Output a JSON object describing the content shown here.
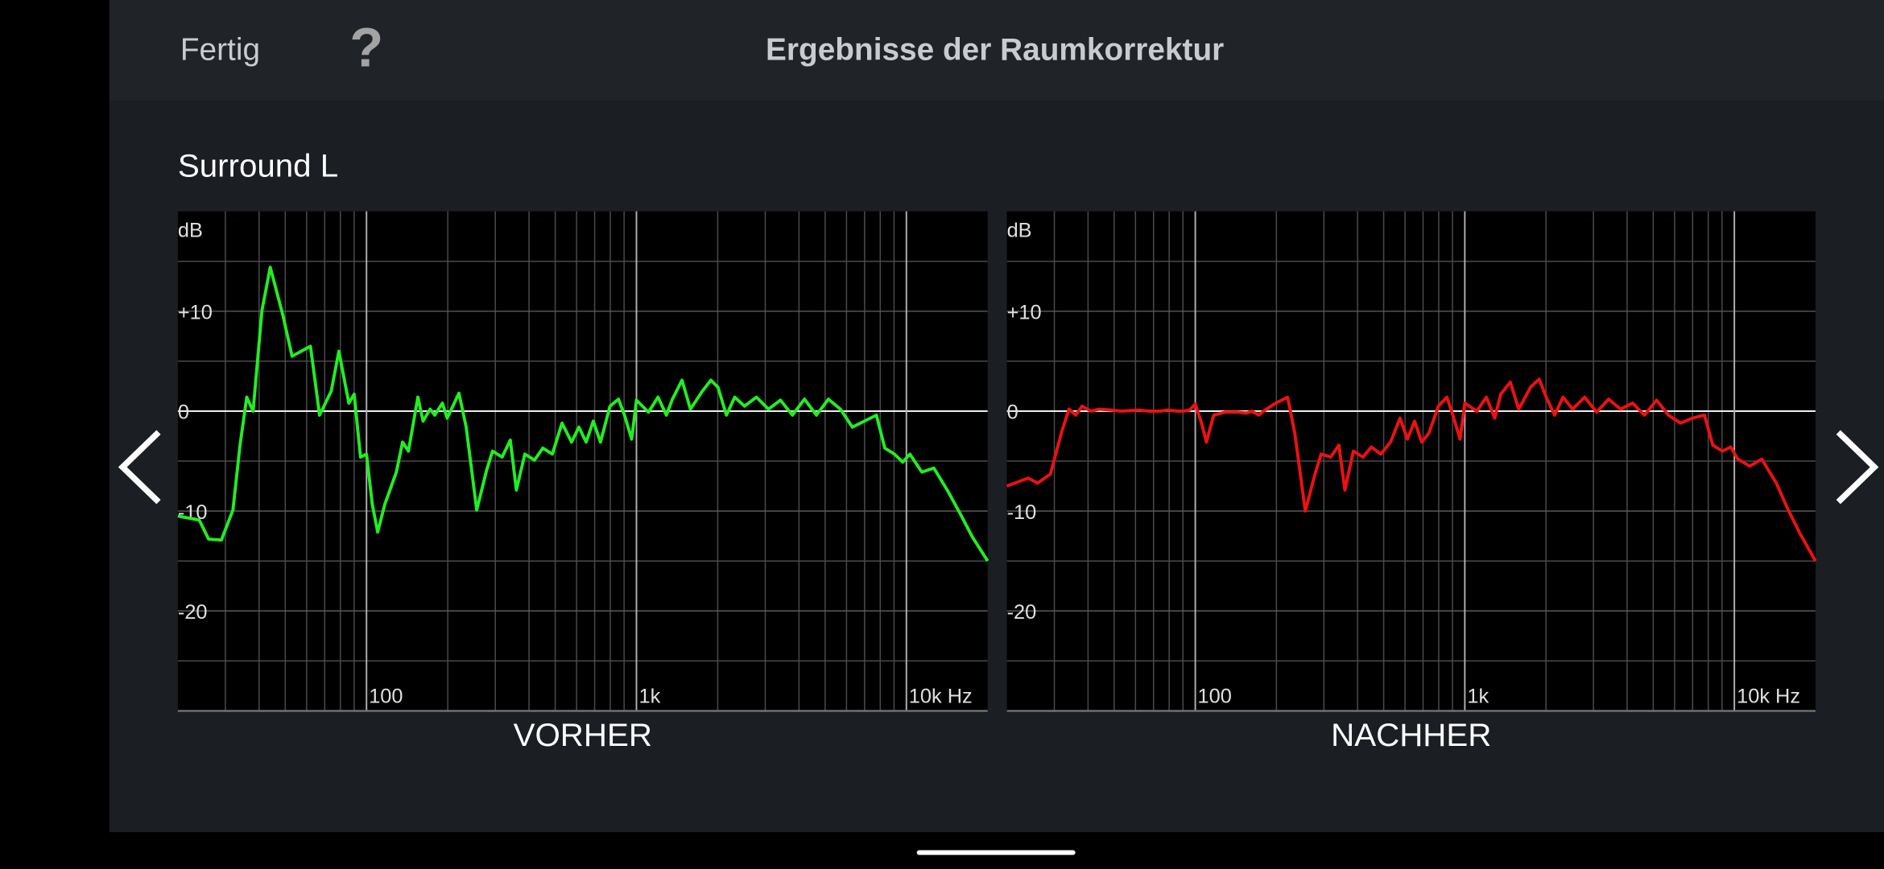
{
  "header": {
    "done": "Fertig",
    "help": "?",
    "title": "Ergebnisse der Raumkorrektur"
  },
  "speaker": "Surround L",
  "chart_data": [
    {
      "type": "line",
      "x_label": "VORHER",
      "y_label": "dB",
      "color": "#22ee22",
      "log_x": true,
      "grid": true,
      "xlim": [
        20,
        20000
      ],
      "ylim": [
        -30,
        20
      ],
      "xticks": [
        100,
        {
          "value": 1000,
          "label": "1k"
        },
        {
          "value": 10000,
          "label": "10k Hz"
        }
      ],
      "x_minor_ticks": [
        30,
        40,
        50,
        60,
        70,
        80,
        90,
        200,
        300,
        400,
        500,
        600,
        700,
        800,
        900,
        2000,
        3000,
        4000,
        5000,
        6000,
        7000,
        8000,
        9000
      ],
      "yticks": [
        {
          "value": 10,
          "label": "+10"
        },
        0,
        -10,
        -20
      ],
      "y_minor_ticks": [
        15,
        5,
        -5,
        -15,
        -25
      ],
      "x": [
        20,
        24,
        26,
        29,
        32,
        34,
        36,
        38,
        41,
        44,
        49,
        53,
        62,
        67,
        74,
        79,
        86,
        90,
        95,
        100,
        105,
        110,
        117,
        129,
        136,
        143,
        155,
        162,
        172,
        179,
        191,
        199,
        220,
        234,
        256,
        278,
        293,
        318,
        341,
        359,
        386,
        419,
        450,
        488,
        530,
        575,
        612,
        651,
        692,
        736,
        798,
        858,
        903,
        960,
        1000,
        1108,
        1202,
        1291,
        1359,
        1475,
        1585,
        1754,
        1887,
        2004,
        2154,
        2313,
        2512,
        2783,
        3083,
        3415,
        3783,
        4191,
        4642,
        5142,
        5696,
        6310,
        6990,
        7743,
        8318,
        9028,
        9700,
        10300,
        11410,
        12640,
        14310,
        15850,
        17560,
        20000
      ],
      "values": [
        -10.5,
        -10.9,
        -12.8,
        -12.9,
        -9.9,
        -3.4,
        1.4,
        0,
        10.1,
        14.4,
        9.6,
        5.5,
        6.5,
        -0.4,
        2.0,
        6.0,
        0.8,
        1.7,
        -4.6,
        -4.3,
        -9.3,
        -12.1,
        -9.3,
        -6.1,
        -3.1,
        -4.0,
        1.4,
        -1.0,
        0.2,
        -0.4,
        0.8,
        -0.7,
        1.8,
        -1.6,
        -9.9,
        -6.0,
        -4.0,
        -4.6,
        -2.9,
        -7.9,
        -4.3,
        -4.9,
        -3.7,
        -4.3,
        -1.2,
        -3.1,
        -1.6,
        -3.1,
        -1.0,
        -3.1,
        0.5,
        1.2,
        -0.4,
        -2.8,
        1.1,
        -0.1,
        1.4,
        -0.4,
        1.2,
        3.1,
        0.2,
        2.0,
        3.1,
        2.4,
        -0.4,
        1.4,
        0.5,
        1.4,
        0.2,
        1.1,
        -0.4,
        1.2,
        -0.4,
        1.2,
        0.2,
        -1.6,
        -1.0,
        -0.4,
        -3.7,
        -4.3,
        -5.1,
        -4.3,
        -6.1,
        -5.7,
        -8.1,
        -10.3,
        -12.6,
        -15.0
      ]
    },
    {
      "type": "line",
      "x_label": "NACHHER",
      "y_label": "dB",
      "color": "#ee1111",
      "log_x": true,
      "grid": true,
      "xlim": [
        20,
        20000
      ],
      "ylim": [
        -30,
        20
      ],
      "xticks": [
        100,
        {
          "value": 1000,
          "label": "1k"
        },
        {
          "value": 10000,
          "label": "10k Hz"
        }
      ],
      "x_minor_ticks": [
        30,
        40,
        50,
        60,
        70,
        80,
        90,
        200,
        300,
        400,
        500,
        600,
        700,
        800,
        900,
        2000,
        3000,
        4000,
        5000,
        6000,
        7000,
        8000,
        9000
      ],
      "yticks": [
        {
          "value": 10,
          "label": "+10"
        },
        0,
        -10,
        -20
      ],
      "y_minor_ticks": [
        15,
        5,
        -5,
        -15,
        -25
      ],
      "x": [
        20,
        24,
        26,
        29,
        32,
        34,
        36,
        38,
        41,
        44,
        49,
        53,
        62,
        67,
        74,
        79,
        86,
        90,
        95,
        100,
        105,
        110,
        117,
        129,
        136,
        143,
        155,
        162,
        172,
        179,
        191,
        199,
        220,
        234,
        256,
        278,
        293,
        318,
        341,
        359,
        386,
        419,
        450,
        488,
        530,
        575,
        612,
        651,
        692,
        736,
        798,
        858,
        903,
        960,
        1000,
        1108,
        1202,
        1291,
        1359,
        1475,
        1585,
        1754,
        1887,
        2004,
        2154,
        2313,
        2512,
        2783,
        3083,
        3415,
        3783,
        4191,
        4642,
        5142,
        5696,
        6310,
        6990,
        7743,
        8318,
        9028,
        9700,
        10300,
        11410,
        12640,
        14310,
        15850,
        17560,
        20000
      ],
      "values": [
        -7.5,
        -6.7,
        -7.2,
        -6.3,
        -2.0,
        0.2,
        -0.4,
        0.5,
        0,
        0.2,
        0.1,
        0,
        0.1,
        0,
        0,
        0.1,
        0,
        0,
        0.1,
        0.7,
        -1.0,
        -3.1,
        -0.4,
        -0.1,
        -0.1,
        -0.1,
        -0.2,
        0,
        -0.4,
        0,
        0.5,
        0.8,
        1.4,
        -2.2,
        -10.0,
        -6.3,
        -4.3,
        -4.6,
        -3.4,
        -7.9,
        -4.0,
        -4.6,
        -3.6,
        -4.3,
        -3.1,
        -0.7,
        -2.8,
        -1.0,
        -3.1,
        -2.2,
        0.5,
        1.4,
        -0.4,
        -2.8,
        0.8,
        0,
        1.4,
        -0.7,
        1.7,
        2.9,
        0.2,
        2.4,
        3.2,
        1.4,
        -0.4,
        1.4,
        0.2,
        1.4,
        -0.1,
        1.2,
        0.2,
        0.8,
        -0.4,
        1.1,
        -0.4,
        -1.2,
        -0.7,
        -0.4,
        -3.4,
        -4.0,
        -3.6,
        -4.8,
        -5.5,
        -4.8,
        -7.2,
        -9.9,
        -12.3,
        -15.0
      ]
    }
  ]
}
